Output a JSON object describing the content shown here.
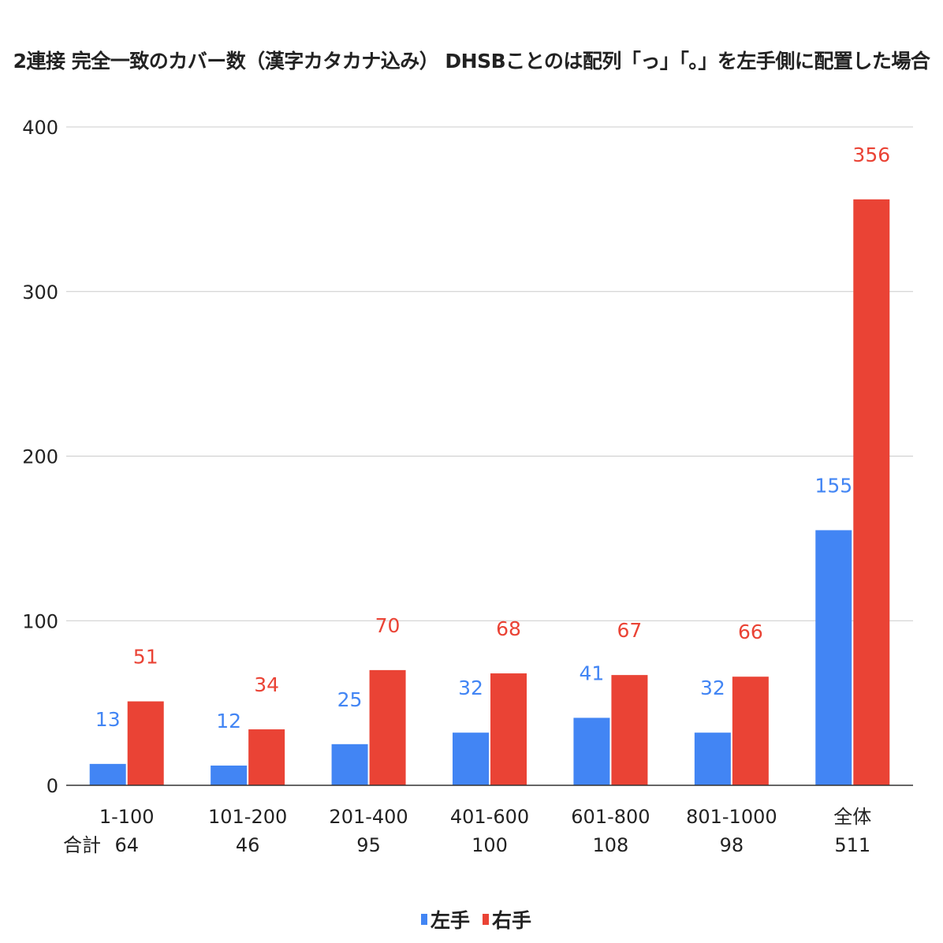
{
  "chart_data": {
    "type": "bar",
    "title": "2連接 完全一致のカバー数（漢字カタカナ込み） DHSBことのは配列「っ」「。」を左手側に配置した場合",
    "categories": [
      "1-100",
      "101-200",
      "201-400",
      "401-600",
      "601-800",
      "801-1000",
      "全体"
    ],
    "totals_label": "合計",
    "totals": [
      "64",
      "46",
      "95",
      "100",
      "108",
      "98",
      "511"
    ],
    "series": [
      {
        "name": "左手",
        "color": "#4285f4",
        "values": [
          13,
          12,
          25,
          32,
          41,
          32,
          155
        ]
      },
      {
        "name": "右手",
        "color": "#ea4335",
        "values": [
          51,
          34,
          70,
          68,
          67,
          66,
          356
        ]
      }
    ],
    "ylim": [
      0,
      400
    ],
    "yticks": [
      "0",
      "100",
      "200",
      "300",
      "400"
    ],
    "grid": true,
    "legend_position": "bottom"
  }
}
